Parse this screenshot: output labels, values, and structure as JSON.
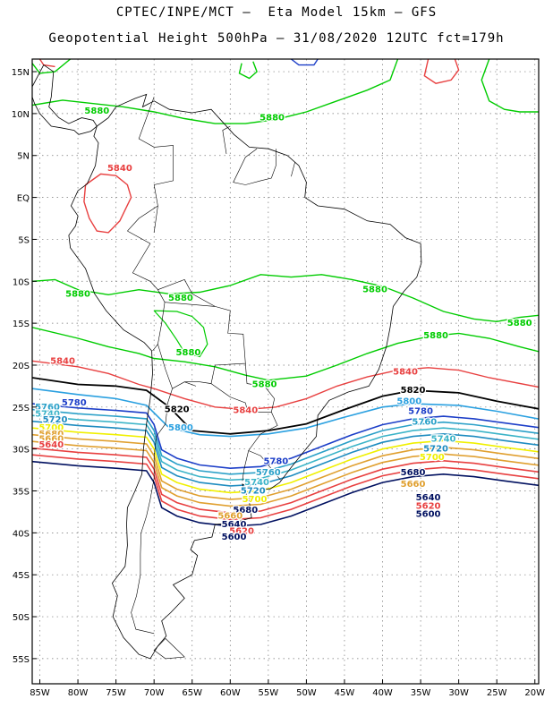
{
  "header": {
    "title_line1": "CPTEC/INPE/MCT –  Eta Model 15km – GFS",
    "title_line2": "Geopotential Height 500hPa – 31/08/2020 12UTC fct=179h"
  },
  "map": {
    "lat_labels": [
      "15N",
      "10N",
      "5N",
      "EQ",
      "5S",
      "10S",
      "15S",
      "20S",
      "25S",
      "30S",
      "35S",
      "40S",
      "45S",
      "50S",
      "55S"
    ],
    "lat_values": [
      15,
      10,
      5,
      0,
      -5,
      -10,
      -15,
      -20,
      -25,
      -30,
      -35,
      -40,
      -45,
      -50,
      -55
    ],
    "lon_labels": [
      "85W",
      "80W",
      "75W",
      "70W",
      "65W",
      "60W",
      "55W",
      "50W",
      "45W",
      "40W",
      "35W",
      "30W",
      "25W",
      "20W"
    ],
    "lon_values": [
      -85,
      -80,
      -75,
      -70,
      -65,
      -60,
      -55,
      -50,
      -45,
      -40,
      -35,
      -30,
      -25,
      -20
    ],
    "extent": {
      "lon_min": -86,
      "lon_max": -19.5,
      "lat_min": -58,
      "lat_max": 16.5
    },
    "colors": {
      "c5880": "#00cc00",
      "c5840": "#e84040",
      "c5820": "#000000",
      "c5800": "#2aa0e0",
      "c5780": "#1c3ec8",
      "c5760": "#2aa0c8",
      "c5740": "#3cb4c8",
      "c5720": "#1e8cc0",
      "c5700": "#f0f000",
      "c5680": "#e0a030",
      "c5640": "#e84040",
      "c5600": "#001060",
      "coast": "#000000",
      "grid": "#777777"
    },
    "contour_labels": [
      {
        "text": "5880",
        "lon": -77.5,
        "lat": 10.3,
        "color": "c5880"
      },
      {
        "text": "5880",
        "lon": -54.5,
        "lat": 9.5,
        "color": "c5880"
      },
      {
        "text": "5840",
        "lon": -74.5,
        "lat": 3.5,
        "color": "c5840"
      },
      {
        "text": "5880",
        "lon": -80.0,
        "lat": -11.5,
        "color": "c5880"
      },
      {
        "text": "5880",
        "lon": -66.5,
        "lat": -12.0,
        "color": "c5880"
      },
      {
        "text": "5880",
        "lon": -65.5,
        "lat": -18.5,
        "color": "c5880"
      },
      {
        "text": "5880",
        "lon": -41.0,
        "lat": -11.0,
        "color": "c5880"
      },
      {
        "text": "5880",
        "lon": -33.0,
        "lat": -16.5,
        "color": "c5880"
      },
      {
        "text": "5880",
        "lon": -22.0,
        "lat": -15.0,
        "color": "c5880"
      },
      {
        "text": "5880",
        "lon": -55.5,
        "lat": -22.3,
        "color": "c5880"
      },
      {
        "text": "5840",
        "lon": -82.0,
        "lat": -19.5,
        "color": "c5840"
      },
      {
        "text": "5840",
        "lon": -37.0,
        "lat": -20.8,
        "color": "c5840"
      },
      {
        "text": "5840",
        "lon": -58.0,
        "lat": -25.4,
        "color": "c5840"
      },
      {
        "text": "5820",
        "lon": -67.0,
        "lat": -25.3,
        "color": "c5820"
      },
      {
        "text": "5820",
        "lon": -36.0,
        "lat": -23.0,
        "color": "c5820"
      },
      {
        "text": "5800",
        "lon": -66.5,
        "lat": -27.5,
        "color": "c5800"
      },
      {
        "text": "5800",
        "lon": -36.5,
        "lat": -24.3,
        "color": "c5800"
      },
      {
        "text": "5780",
        "lon": -80.5,
        "lat": -24.5,
        "color": "c5780"
      },
      {
        "text": "5780",
        "lon": -54.0,
        "lat": -31.5,
        "color": "c5780"
      },
      {
        "text": "5780",
        "lon": -35.0,
        "lat": -25.5,
        "color": "c5780"
      },
      {
        "text": "5760",
        "lon": -84.0,
        "lat": -25.0,
        "color": "c5760"
      },
      {
        "text": "5760",
        "lon": -55.0,
        "lat": -32.8,
        "color": "c5760"
      },
      {
        "text": "5760",
        "lon": -34.5,
        "lat": -26.8,
        "color": "c5760"
      },
      {
        "text": "5740",
        "lon": -84.0,
        "lat": -25.8,
        "color": "c5740"
      },
      {
        "text": "5740",
        "lon": -56.5,
        "lat": -34.0,
        "color": "c5740"
      },
      {
        "text": "5740",
        "lon": -32.0,
        "lat": -28.8,
        "color": "c5740"
      },
      {
        "text": "5720",
        "lon": -83.0,
        "lat": -26.5,
        "color": "c5720"
      },
      {
        "text": "5720",
        "lon": -57.0,
        "lat": -35.0,
        "color": "c5720"
      },
      {
        "text": "5720",
        "lon": -33.0,
        "lat": -30.0,
        "color": "c5720"
      },
      {
        "text": "5700",
        "lon": -83.5,
        "lat": -27.5,
        "color": "c5700"
      },
      {
        "text": "5700",
        "lon": -56.8,
        "lat": -36.0,
        "color": "c5700"
      },
      {
        "text": "5700",
        "lon": -33.5,
        "lat": -31.0,
        "color": "c5700"
      },
      {
        "text": "5680",
        "lon": -83.5,
        "lat": -28.2,
        "color": "c5680"
      },
      {
        "text": "5680",
        "lon": -58.0,
        "lat": -37.3,
        "color": "c5600"
      },
      {
        "text": "5680",
        "lon": -36.0,
        "lat": -32.8,
        "color": "c5600"
      },
      {
        "text": "5660",
        "lon": -83.5,
        "lat": -28.8,
        "color": "c5680"
      },
      {
        "text": "5660",
        "lon": -60.0,
        "lat": -38.0,
        "color": "c5680"
      },
      {
        "text": "5660",
        "lon": -36.0,
        "lat": -34.2,
        "color": "c5680"
      },
      {
        "text": "5640",
        "lon": -83.5,
        "lat": -29.5,
        "color": "c5640"
      },
      {
        "text": "5640",
        "lon": -59.5,
        "lat": -39.0,
        "color": "c5600"
      },
      {
        "text": "5640",
        "lon": -34.0,
        "lat": -35.8,
        "color": "c5600"
      },
      {
        "text": "5620",
        "lon": -58.5,
        "lat": -39.8,
        "color": "c5640"
      },
      {
        "text": "5620",
        "lon": -34.0,
        "lat": -36.8,
        "color": "c5640"
      },
      {
        "text": "5600",
        "lon": -59.5,
        "lat": -40.5,
        "color": "c5600"
      },
      {
        "text": "5600",
        "lon": -34.0,
        "lat": -37.8,
        "color": "c5600"
      }
    ]
  }
}
